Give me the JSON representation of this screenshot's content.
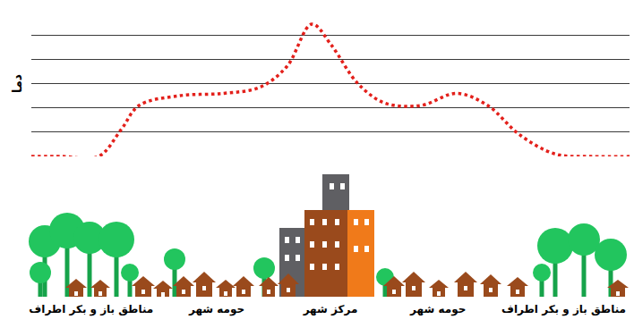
{
  "chart_data": {
    "type": "line",
    "y_label": "دما",
    "x": [
      0,
      5.2,
      11.2,
      15,
      18,
      24.7,
      32.2,
      38.2,
      42.7,
      46.9,
      50.1,
      54.6,
      59.1,
      65.1,
      71.1,
      76.3,
      81.6,
      87.6,
      93.6,
      100
    ],
    "values": [
      0,
      0,
      0,
      1.1,
      2.1,
      2.5,
      2.6,
      2.85,
      3.7,
      5.45,
      4.6,
      3.0,
      2.2,
      2.1,
      2.6,
      2.1,
      0.9,
      0.1,
      0,
      0
    ],
    "color": "#e3201b",
    "line_style": "dotted",
    "xlim": [
      0,
      100
    ],
    "xticks": [
      {
        "value": 10,
        "label": "مناطق باز و بکر اطراف"
      },
      {
        "value": 31,
        "label": "حومه شهر"
      },
      {
        "value": 50,
        "label": "مرکز شهر"
      },
      {
        "value": 68,
        "label": "حومه شهر"
      },
      {
        "value": 89,
        "label": "مناطق باز و بکر اطراف"
      }
    ],
    "ylim": [
      0,
      6
    ],
    "yticks": [
      0,
      1,
      2,
      3,
      4,
      5,
      6
    ],
    "grid": true,
    "tick_labels": "x"
  }
}
